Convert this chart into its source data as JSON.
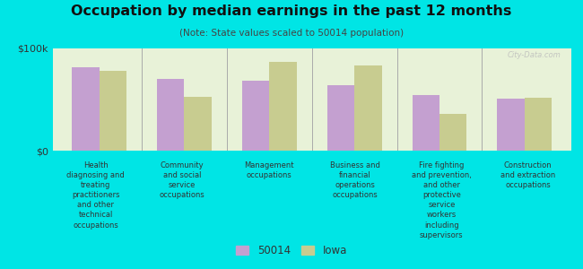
{
  "title": "Occupation by median earnings in the past 12 months",
  "subtitle": "(Note: State values scaled to 50014 population)",
  "background_color": "#00e5e5",
  "plot_bg_color": "#e8f2d8",
  "bar_color_50014": "#c4a0d0",
  "bar_color_iowa": "#c8cc90",
  "ymax": 100000,
  "ytick_labels": [
    "$0",
    "$100k"
  ],
  "categories": [
    "Health\ndiagnosing and\ntreating\npractitioners\nand other\ntechnical\noccupations",
    "Community\nand social\nservice\noccupations",
    "Management\noccupations",
    "Business and\nfinancial\noperations\noccupations",
    "Fire fighting\nand prevention,\nand other\nprotective\nservice\nworkers\nincluding\nsupervisors",
    "Construction\nand extraction\noccupations"
  ],
  "values_50014": [
    82000,
    70000,
    68000,
    64000,
    54000,
    51000
  ],
  "values_iowa": [
    78000,
    53000,
    87000,
    83000,
    36000,
    52000
  ],
  "legend_labels": [
    "50014",
    "Iowa"
  ],
  "watermark": "City-Data.com"
}
